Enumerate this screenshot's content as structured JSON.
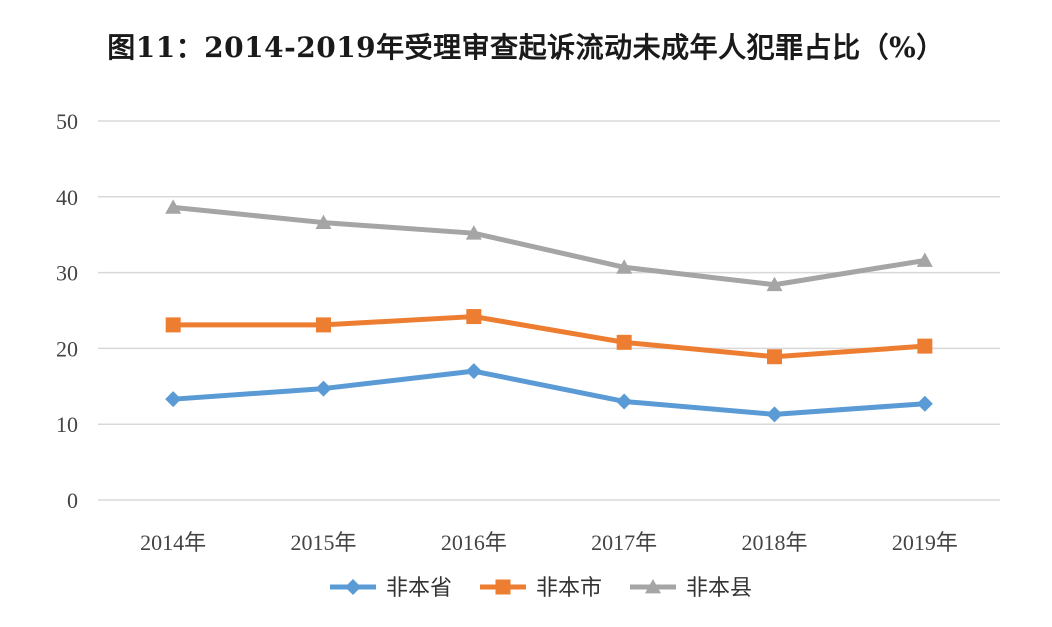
{
  "chart_data": {
    "type": "line",
    "title": "图11：2014-2019年受理审查起诉流动未成年人犯罪占比（%）",
    "xlabel": "",
    "ylabel": "",
    "categories": [
      "2014年",
      "2015年",
      "2016年",
      "2017年",
      "2018年",
      "2019年"
    ],
    "ylim": [
      0,
      50
    ],
    "yticks": [
      0,
      10,
      20,
      30,
      40,
      50
    ],
    "grid": true,
    "legend_position": "bottom",
    "series": [
      {
        "name": "非本省",
        "color": "#5B9BD5",
        "marker": "diamond",
        "values": [
          13.3,
          14.7,
          17.0,
          13.0,
          11.3,
          12.7
        ]
      },
      {
        "name": "非本市",
        "color": "#ED7D31",
        "marker": "square",
        "values": [
          23.1,
          23.1,
          24.2,
          20.8,
          18.9,
          20.3
        ]
      },
      {
        "name": "非本县",
        "color": "#A5A5A5",
        "marker": "triangle",
        "values": [
          38.6,
          36.6,
          35.2,
          30.7,
          28.4,
          31.6
        ]
      }
    ]
  }
}
